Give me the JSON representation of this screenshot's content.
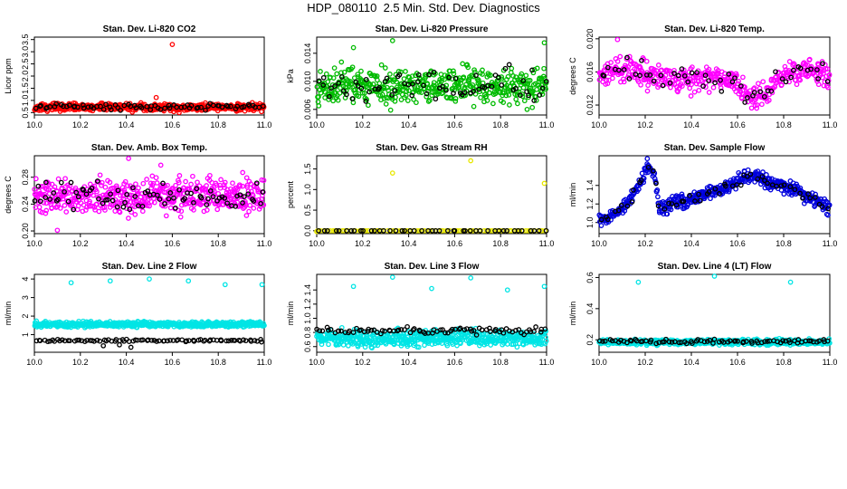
{
  "figure_title": "HDP_080110  2.5 Min. Std. Dev. Diagnostics",
  "chart_data": [
    {
      "type": "scatter",
      "title": "Stan. Dev. Li-820 CO2",
      "ylabel": "Licor ppm",
      "xlim": [
        10.0,
        11.0
      ],
      "ylim": [
        0.4,
        3.6
      ],
      "xticks": [
        "10.0",
        "10.2",
        "10.4",
        "10.6",
        "10.8",
        "11.0"
      ],
      "xtick_values": [
        10.0,
        10.2,
        10.4,
        10.6,
        10.8,
        11.0
      ],
      "yticks": [
        "0.5",
        "1.0",
        "1.5",
        "2.0",
        "2.5",
        "3.0",
        "3.5"
      ],
      "ytick_values": [
        0.5,
        1.0,
        1.5,
        2.0,
        2.5,
        3.0,
        3.5
      ],
      "series": [
        {
          "name": "main",
          "color": "#ff0000",
          "pattern": {
            "n": 520,
            "base": 0.72,
            "amp": 0.22,
            "seed": 11
          },
          "outliers": [
            [
              10.6,
              3.3
            ],
            [
              10.53,
              1.12
            ],
            [
              10.63,
              0.5
            ]
          ]
        },
        {
          "name": "overlay",
          "color": "#000000",
          "pattern": {
            "n": 75,
            "base": 0.74,
            "amp": 0.2,
            "seed": 12
          }
        }
      ]
    },
    {
      "type": "scatter",
      "title": "Stan. Dev. Li-820 Pressure",
      "ylabel": "kPa",
      "xlim": [
        10.0,
        11.0
      ],
      "ylim": [
        0.0052,
        0.0163
      ],
      "xticks": [
        "10.0",
        "10.2",
        "10.4",
        "10.6",
        "10.8",
        "11.0"
      ],
      "xtick_values": [
        10.0,
        10.2,
        10.4,
        10.6,
        10.8,
        11.0
      ],
      "yticks": [
        "0.006",
        "0.010",
        "0.014"
      ],
      "ytick_values": [
        0.006,
        0.01,
        0.014
      ],
      "series": [
        {
          "name": "main",
          "color": "#00bb00",
          "pattern": {
            "n": 480,
            "base": 0.0093,
            "amp": 0.0038,
            "seed": 21
          },
          "outliers": [
            [
              10.33,
              0.0158
            ],
            [
              10.99,
              0.0155
            ],
            [
              10.16,
              0.0148
            ]
          ]
        },
        {
          "name": "overlay",
          "color": "#000000",
          "pattern": {
            "n": 70,
            "base": 0.0095,
            "amp": 0.0035,
            "seed": 22
          }
        }
      ]
    },
    {
      "type": "scatter",
      "title": "Stan. Dev. Li-820 Temp.",
      "ylabel": "degrees C",
      "xlim": [
        10.0,
        11.0
      ],
      "ylim": [
        0.0108,
        0.0202
      ],
      "xticks": [
        "10.0",
        "10.2",
        "10.4",
        "10.6",
        "10.8",
        "11.0"
      ],
      "xtick_values": [
        10.0,
        10.2,
        10.4,
        10.6,
        10.8,
        11.0
      ],
      "yticks": [
        "0.012",
        "0.016",
        "0.020"
      ],
      "ytick_values": [
        0.012,
        0.016,
        0.02
      ],
      "series": [
        {
          "name": "main",
          "color": "#ff00ff",
          "trend": [
            [
              10.0,
              0.0155
            ],
            [
              10.1,
              0.0165
            ],
            [
              10.2,
              0.0158
            ],
            [
              10.35,
              0.015
            ],
            [
              10.5,
              0.0155
            ],
            [
              10.6,
              0.0145
            ],
            [
              10.65,
              0.0128
            ],
            [
              10.72,
              0.013
            ],
            [
              10.8,
              0.0158
            ],
            [
              10.9,
              0.0163
            ],
            [
              11.0,
              0.0155
            ]
          ],
          "pattern": {
            "n": 430,
            "base": 0,
            "amp": 0.0022,
            "seed": 31
          },
          "outliers": [
            [
              10.08,
              0.0199
            ]
          ]
        },
        {
          "name": "overlay",
          "color": "#000000",
          "trend": [
            [
              10.0,
              0.0155
            ],
            [
              10.1,
              0.0165
            ],
            [
              10.2,
              0.0158
            ],
            [
              10.35,
              0.015
            ],
            [
              10.5,
              0.0155
            ],
            [
              10.6,
              0.0145
            ],
            [
              10.65,
              0.0128
            ],
            [
              10.72,
              0.013
            ],
            [
              10.8,
              0.0158
            ],
            [
              10.9,
              0.0163
            ],
            [
              11.0,
              0.0155
            ]
          ],
          "pattern": {
            "n": 55,
            "base": 0,
            "amp": 0.0018,
            "seed": 32
          }
        }
      ]
    },
    {
      "type": "scatter",
      "title": "Stan. Dev. Amb. Box Temp.",
      "ylabel": "degrees C",
      "xlim": [
        10.0,
        11.0
      ],
      "ylim": [
        0.196,
        0.312
      ],
      "xticks": [
        "10.0",
        "10.2",
        "10.4",
        "10.6",
        "10.8",
        "11.0"
      ],
      "xtick_values": [
        10.0,
        10.2,
        10.4,
        10.6,
        10.8,
        11.0
      ],
      "yticks": [
        "0.20",
        "0.24",
        "0.28"
      ],
      "ytick_values": [
        0.2,
        0.24,
        0.28
      ],
      "series": [
        {
          "name": "main",
          "color": "#ff00ff",
          "pattern": {
            "n": 520,
            "base": 0.252,
            "amp": 0.038,
            "seed": 41
          },
          "outliers": [
            [
              10.41,
              0.308
            ],
            [
              10.1,
              0.201
            ],
            [
              10.55,
              0.298
            ]
          ]
        },
        {
          "name": "overlay",
          "color": "#000000",
          "pattern": {
            "n": 80,
            "base": 0.252,
            "amp": 0.032,
            "seed": 42
          }
        }
      ]
    },
    {
      "type": "scatter",
      "title": "Stan. Dev. Gas Stream RH",
      "ylabel": "percent",
      "xlim": [
        10.0,
        11.0
      ],
      "ylim": [
        -0.07,
        1.82
      ],
      "xticks": [
        "10.0",
        "10.2",
        "10.4",
        "10.6",
        "10.8",
        "11.0"
      ],
      "xtick_values": [
        10.0,
        10.2,
        10.4,
        10.6,
        10.8,
        11.0
      ],
      "yticks": [
        "0.0",
        "0.5",
        "1.0",
        "1.5"
      ],
      "ytick_values": [
        0.0,
        0.5,
        1.0,
        1.5
      ],
      "series": [
        {
          "name": "main",
          "color": "#e8e800",
          "pattern": {
            "n": 90,
            "base": 0.0,
            "amp": 0.0,
            "seed": 51
          },
          "outliers": [
            [
              10.33,
              1.4
            ],
            [
              10.67,
              1.7
            ],
            [
              10.99,
              1.15
            ],
            [
              10.0,
              -0.02
            ]
          ]
        },
        {
          "name": "overlay",
          "color": "#000000",
          "pattern": {
            "n": 45,
            "base": 0.0,
            "amp": 0.0,
            "seed": 52
          }
        }
      ]
    },
    {
      "type": "scatter",
      "title": "Stan. Dev. Sample Flow",
      "ylabel": "ml/min",
      "xlim": [
        10.0,
        11.0
      ],
      "ylim": [
        0.88,
        1.72
      ],
      "xticks": [
        "10.0",
        "10.2",
        "10.4",
        "10.6",
        "10.8",
        "11.0"
      ],
      "xtick_values": [
        10.0,
        10.2,
        10.4,
        10.6,
        10.8,
        11.0
      ],
      "yticks": [
        "1.0",
        "1.2",
        "1.4"
      ],
      "ytick_values": [
        1.0,
        1.2,
        1.4
      ],
      "series": [
        {
          "name": "main",
          "color": "#0000dd",
          "trend": [
            [
              10.0,
              1.02
            ],
            [
              10.05,
              1.05
            ],
            [
              10.12,
              1.2
            ],
            [
              10.18,
              1.42
            ],
            [
              10.21,
              1.6
            ],
            [
              10.24,
              1.55
            ],
            [
              10.26,
              1.15
            ],
            [
              10.32,
              1.2
            ],
            [
              10.45,
              1.3
            ],
            [
              10.55,
              1.38
            ],
            [
              10.62,
              1.48
            ],
            [
              10.67,
              1.5
            ],
            [
              10.75,
              1.42
            ],
            [
              10.85,
              1.35
            ],
            [
              10.95,
              1.22
            ],
            [
              11.0,
              1.15
            ]
          ],
          "pattern": {
            "n": 470,
            "base": 0,
            "amp": 0.11,
            "seed": 61
          }
        },
        {
          "name": "overlay",
          "color": "#000000",
          "trend": [
            [
              10.0,
              1.02
            ],
            [
              10.05,
              1.05
            ],
            [
              10.12,
              1.2
            ],
            [
              10.18,
              1.42
            ],
            [
              10.21,
              1.6
            ],
            [
              10.24,
              1.55
            ],
            [
              10.26,
              1.15
            ],
            [
              10.32,
              1.2
            ],
            [
              10.45,
              1.3
            ],
            [
              10.55,
              1.38
            ],
            [
              10.62,
              1.48
            ],
            [
              10.67,
              1.5
            ],
            [
              10.75,
              1.42
            ],
            [
              10.85,
              1.35
            ],
            [
              10.95,
              1.22
            ],
            [
              11.0,
              1.15
            ]
          ],
          "pattern": {
            "n": 55,
            "base": 0,
            "amp": 0.08,
            "seed": 62
          }
        }
      ]
    },
    {
      "type": "scatter",
      "title": "Stan. Dev. Line 2 Flow",
      "ylabel": "ml/min",
      "xlim": [
        10.0,
        11.0
      ],
      "ylim": [
        0.05,
        4.25
      ],
      "xticks": [
        "10.0",
        "10.2",
        "10.4",
        "10.6",
        "10.8",
        "11.0"
      ],
      "xtick_values": [
        10.0,
        10.2,
        10.4,
        10.6,
        10.8,
        11.0
      ],
      "yticks": [
        "1",
        "2",
        "3",
        "4"
      ],
      "ytick_values": [
        1,
        2,
        3,
        4
      ],
      "series": [
        {
          "name": "main",
          "color": "#00e5e5",
          "pattern": {
            "n": 560,
            "base": 1.55,
            "amp": 0.22,
            "seed": 71
          },
          "outliers": [
            [
              10.16,
              3.8
            ],
            [
              10.33,
              3.9
            ],
            [
              10.5,
              4.0
            ],
            [
              10.67,
              3.9
            ],
            [
              10.83,
              3.7
            ],
            [
              10.99,
              3.7
            ]
          ]
        },
        {
          "name": "overlay",
          "color": "#000000",
          "pattern": {
            "n": 85,
            "base": 0.68,
            "amp": 0.1,
            "seed": 72
          },
          "outliers": [
            [
              10.42,
              0.32
            ],
            [
              10.37,
              0.45
            ],
            [
              10.3,
              0.4
            ]
          ]
        }
      ]
    },
    {
      "type": "scatter",
      "title": "Stan. Dev. Line 3 Flow",
      "ylabel": "ml/min",
      "xlim": [
        10.0,
        11.0
      ],
      "ylim": [
        0.52,
        1.62
      ],
      "xticks": [
        "10.0",
        "10.2",
        "10.4",
        "10.6",
        "10.8",
        "11.0"
      ],
      "xtick_values": [
        10.0,
        10.2,
        10.4,
        10.6,
        10.8,
        11.0
      ],
      "yticks": [
        "0.6",
        "0.8",
        "1.0",
        "1.2",
        "1.4"
      ],
      "ytick_values": [
        0.6,
        0.8,
        1.0,
        1.2,
        1.4
      ],
      "series": [
        {
          "name": "main",
          "color": "#00e5e5",
          "pattern": {
            "n": 560,
            "base": 0.72,
            "amp": 0.16,
            "seed": 81
          },
          "outliers": [
            [
              10.33,
              1.58
            ],
            [
              10.67,
              1.57
            ],
            [
              10.99,
              1.45
            ],
            [
              10.16,
              1.45
            ],
            [
              10.83,
              1.4
            ],
            [
              10.5,
              1.42
            ]
          ]
        },
        {
          "name": "overlay",
          "color": "#000000",
          "pattern": {
            "n": 85,
            "base": 0.82,
            "amp": 0.07,
            "seed": 82
          }
        }
      ]
    },
    {
      "type": "scatter",
      "title": "Stan. Dev. Line 4 (LT) Flow",
      "ylabel": "ml/min",
      "xlim": [
        10.0,
        11.0
      ],
      "ylim": [
        0.12,
        0.62
      ],
      "xticks": [
        "10.0",
        "10.2",
        "10.4",
        "10.6",
        "10.8",
        "11.0"
      ],
      "xtick_values": [
        10.0,
        10.2,
        10.4,
        10.6,
        10.8,
        11.0
      ],
      "yticks": [
        "0.2",
        "0.4",
        "0.6"
      ],
      "ytick_values": [
        0.2,
        0.4,
        0.6
      ],
      "series": [
        {
          "name": "main",
          "color": "#00e5e5",
          "pattern": {
            "n": 560,
            "base": 0.185,
            "amp": 0.025,
            "seed": 91
          },
          "outliers": [
            [
              10.17,
              0.57
            ],
            [
              10.5,
              0.61
            ],
            [
              10.83,
              0.57
            ]
          ]
        },
        {
          "name": "overlay",
          "color": "#000000",
          "pattern": {
            "n": 80,
            "base": 0.19,
            "amp": 0.018,
            "seed": 92
          }
        }
      ]
    }
  ]
}
